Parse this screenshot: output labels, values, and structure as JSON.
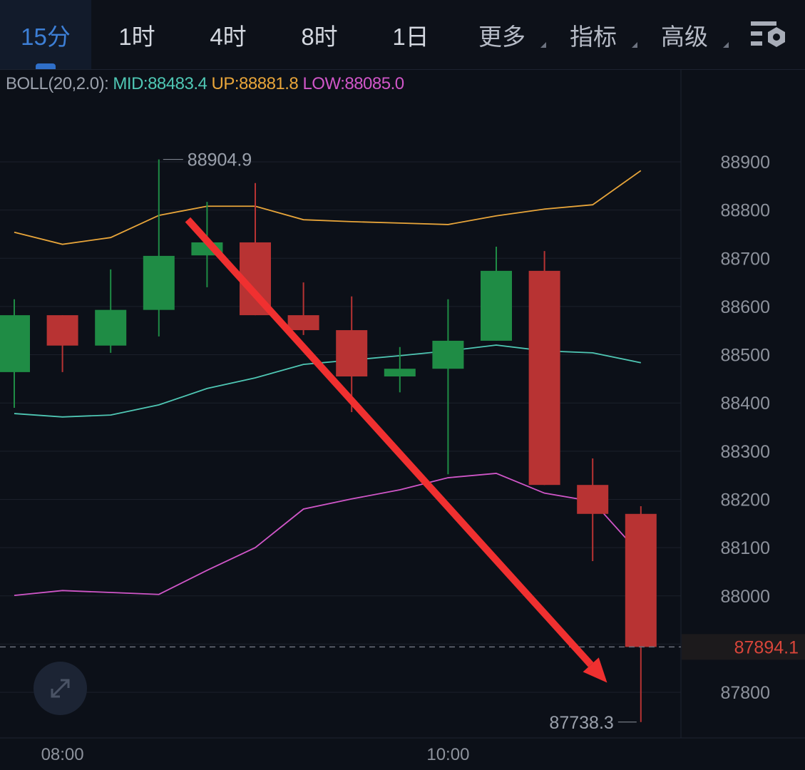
{
  "tabs": [
    {
      "label": "15分",
      "active": true
    },
    {
      "label": "1时"
    },
    {
      "label": "4时"
    },
    {
      "label": "8时"
    },
    {
      "label": "1日"
    },
    {
      "label": "更多",
      "dropdown": true
    },
    {
      "label": "指标",
      "dropdown": true
    },
    {
      "label": "高级",
      "dropdown": true
    }
  ],
  "settings_icon": "chart-settings-icon",
  "expand_icon": "expand-arrows-icon",
  "indicator": {
    "name": "BOLL(20,2.0):",
    "mid": "MID:88483.4",
    "up": "UP:88881.8",
    "low": "LOW:88085.0"
  },
  "colors": {
    "background": "#0c1018",
    "up_candle": "#1f8c45",
    "down_candle": "#b83333",
    "mid": "#4fc7b4",
    "up": "#e8a53a",
    "low": "#d056c8",
    "active_tab": "#3d7fd6",
    "annotation_arrow": "#f03030",
    "last_price": "#d9453a"
  },
  "chart_data": {
    "type": "candlestick",
    "interval": "15分",
    "ylim": [
      87700,
      89000
    ],
    "y_ticks": [
      88900,
      88800,
      88700,
      88600,
      88500,
      88400,
      88300,
      88200,
      88100,
      88000,
      87800
    ],
    "y_tick_labels": [
      "88900",
      "88800",
      "88700",
      "88600",
      "88500",
      "88400",
      "88300",
      "88200",
      "88100",
      "88000",
      "87800"
    ],
    "x_tick_labels": [
      {
        "label": "08:00",
        "index": 1
      },
      {
        "label": "10:00",
        "index": 9
      }
    ],
    "grid": true,
    "candles": [
      {
        "o": 88464,
        "h": 88615,
        "l": 88390,
        "c": 88582
      },
      {
        "o": 88582,
        "h": 88582,
        "l": 88464,
        "c": 88519
      },
      {
        "o": 88519,
        "h": 88677,
        "l": 88504,
        "c": 88593
      },
      {
        "o": 88593,
        "h": 88904.9,
        "l": 88538,
        "c": 88705
      },
      {
        "o": 88706,
        "h": 88817,
        "l": 88640,
        "c": 88733
      },
      {
        "o": 88733,
        "h": 88856,
        "l": 88582,
        "c": 88582
      },
      {
        "o": 88582,
        "h": 88650,
        "l": 88541,
        "c": 88551
      },
      {
        "o": 88551,
        "h": 88621,
        "l": 88381,
        "c": 88455
      },
      {
        "o": 88455,
        "h": 88516,
        "l": 88422,
        "c": 88471
      },
      {
        "o": 88471,
        "h": 88615,
        "l": 88252,
        "c": 88529
      },
      {
        "o": 88529,
        "h": 88724,
        "l": 88529,
        "c": 88674
      },
      {
        "o": 88674,
        "h": 88715,
        "l": 88230,
        "c": 88230
      },
      {
        "o": 88230,
        "h": 88285,
        "l": 88072,
        "c": 88170
      },
      {
        "o": 88170,
        "h": 88186,
        "l": 87738.3,
        "c": 87894.1
      }
    ],
    "series": [
      {
        "name": "UP",
        "values": [
          88754,
          88729,
          88743,
          88789,
          88808,
          88808,
          88780,
          88776,
          88773,
          88770,
          88788,
          88802,
          88811,
          88881.8
        ]
      },
      {
        "name": "MID",
        "values": [
          88378,
          88371,
          88375,
          88396,
          88430,
          88452,
          88480,
          88489,
          88498,
          88508,
          88520,
          88508,
          88504,
          88483.4
        ]
      },
      {
        "name": "LOW",
        "values": [
          88001,
          88011,
          88007,
          88003,
          88053,
          88100,
          88180,
          88201,
          88220,
          88245,
          88254,
          88213,
          88196,
          88085.0
        ]
      }
    ],
    "annotations": {
      "high_label": "88904.9",
      "low_label": "87738.3",
      "last_price": "87894.1",
      "trend_arrow": {
        "from": {
          "index": 3.6,
          "price": 88780
        },
        "to": {
          "index": 12.3,
          "price": 87820
        },
        "direction": "down"
      }
    }
  }
}
